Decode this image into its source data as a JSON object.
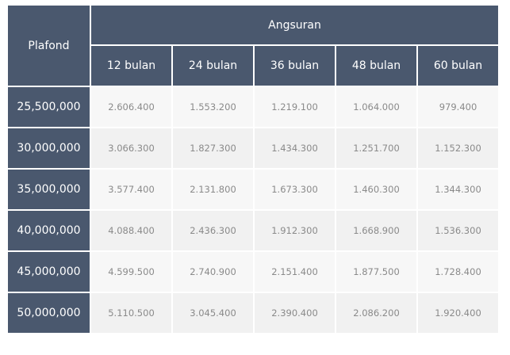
{
  "table": {
    "corner_label": "Plafond",
    "group_label": "Angsuran",
    "columns": [
      "12 bulan",
      "24 bulan",
      "36 bulan",
      "48 bulan",
      "60 bulan"
    ],
    "rows": [
      {
        "plafond": "25,500,000",
        "values": [
          "2.606.400",
          "1.553.200",
          "1.219.100",
          "1.064.000",
          "979.400"
        ]
      },
      {
        "plafond": "30,000,000",
        "values": [
          "3.066.300",
          "1.827.300",
          "1.434.300",
          "1.251.700",
          "1.152.300"
        ]
      },
      {
        "plafond": "35,000,000",
        "values": [
          "3.577.400",
          "2.131.800",
          "1.673.300",
          "1.460.300",
          "1.344.300"
        ]
      },
      {
        "plafond": "40,000,000",
        "values": [
          "4.088.400",
          "2.436.300",
          "1.912.300",
          "1.668.900",
          "1.536.300"
        ]
      },
      {
        "plafond": "45,000,000",
        "values": [
          "4.599.500",
          "2.740.900",
          "2.151.400",
          "1.877.500",
          "1.728.400"
        ]
      },
      {
        "plafond": "50,000,000",
        "values": [
          "5.110.500",
          "3.045.400",
          "2.390.400",
          "2.086.200",
          "1.920.400"
        ]
      }
    ]
  },
  "colors": {
    "header_bg": "#4a586e",
    "header_text": "#ffffff",
    "row_odd_bg": "#f7f7f7",
    "row_even_bg": "#f1f1f1",
    "cell_text": "#8a8a8a"
  }
}
